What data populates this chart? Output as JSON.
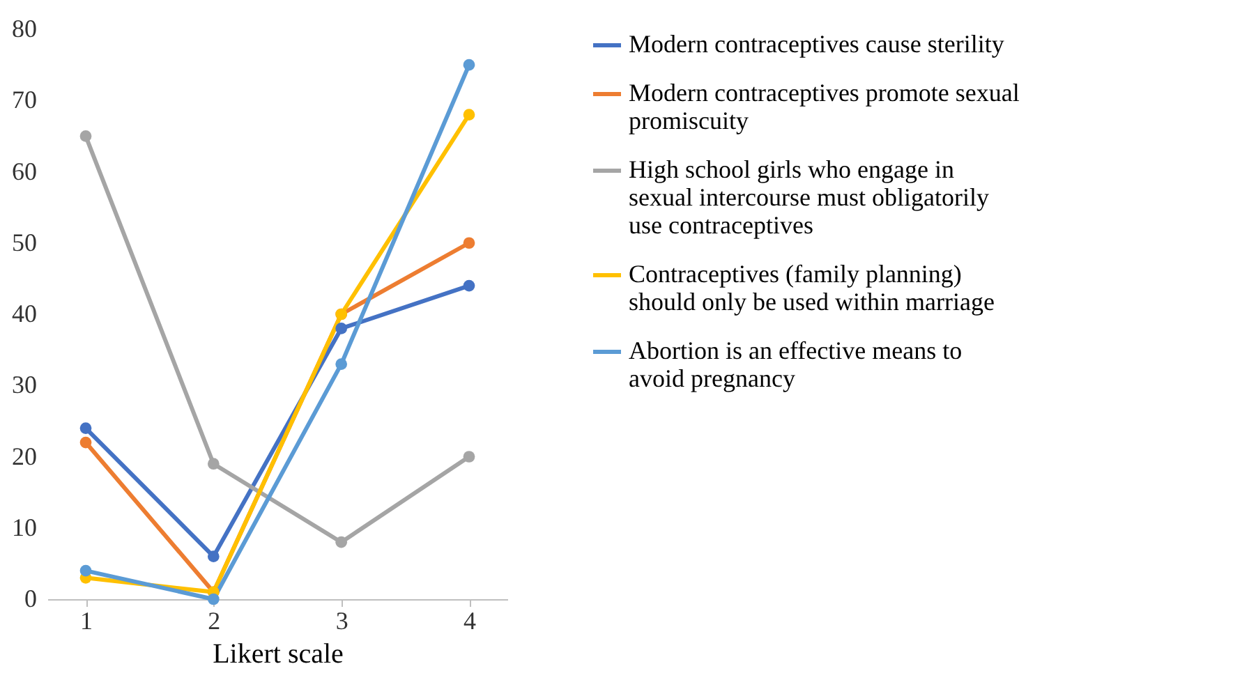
{
  "chart_data": {
    "type": "line",
    "xlabel": "Likert scale",
    "categories": [
      "1",
      "2",
      "3",
      "4"
    ],
    "series": [
      {
        "name": "Modern contraceptives cause sterility",
        "color": "#4472c4",
        "values": [
          24,
          6,
          38,
          44
        ]
      },
      {
        "name": "Modern contraceptives promote sexual promiscuity",
        "color": "#ed7d31",
        "values": [
          22,
          1,
          40,
          50
        ]
      },
      {
        "name": "High school girls who engage in sexual intercourse must obligatorily use contraceptives",
        "color": "#a5a5a5",
        "values": [
          65,
          19,
          8,
          20
        ]
      },
      {
        "name": "Contraceptives (family planning) should only be used within marriage",
        "color": "#ffc000",
        "values": [
          3,
          1,
          40,
          68
        ]
      },
      {
        "name": "Abortion is an effective means to avoid pregnancy",
        "color": "#5b9bd5",
        "values": [
          4,
          0,
          33,
          75
        ]
      }
    ],
    "ylim": [
      0,
      80
    ],
    "yticks": [
      0,
      10,
      20,
      30,
      40,
      50,
      60,
      70,
      80
    ],
    "grid": false,
    "legend": "right",
    "marker": "circle",
    "line_style": "solid"
  }
}
